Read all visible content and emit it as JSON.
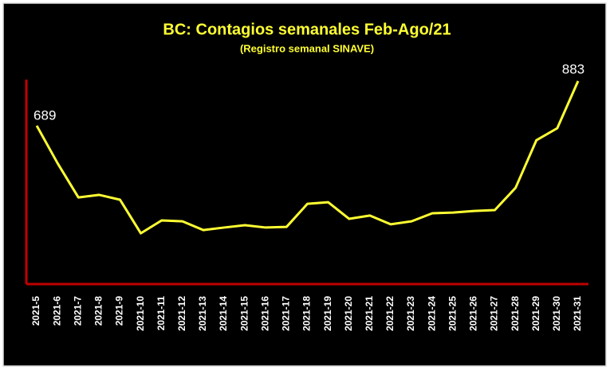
{
  "chart_data": {
    "type": "line",
    "title": "BC: Contagios semanales Feb-Ago/21",
    "subtitle": "(Registro semanal SINAVE)",
    "categories": [
      "2021-5",
      "2021-6",
      "2021-7",
      "2021-8",
      "2021-9",
      "2021-10",
      "2021-11",
      "2021-12",
      "2021-13",
      "2021-14",
      "2021-15",
      "2021-16",
      "2021-17",
      "2021-18",
      "2021-19",
      "2021-20",
      "2021-21",
      "2021-22",
      "2021-23",
      "2021-24",
      "2021-25",
      "2021-26",
      "2021-27",
      "2021-28",
      "2021-29",
      "2021-30",
      "2021-31"
    ],
    "values": [
      689,
      526,
      377,
      388,
      367,
      221,
      277,
      273,
      235,
      246,
      256,
      246,
      249,
      349,
      356,
      284,
      298,
      260,
      273,
      308,
      311,
      318,
      322,
      419,
      626,
      678,
      883
    ],
    "color": "#ffff33",
    "axis_color": "#c00000",
    "ylim": [
      0,
      900
    ]
  }
}
